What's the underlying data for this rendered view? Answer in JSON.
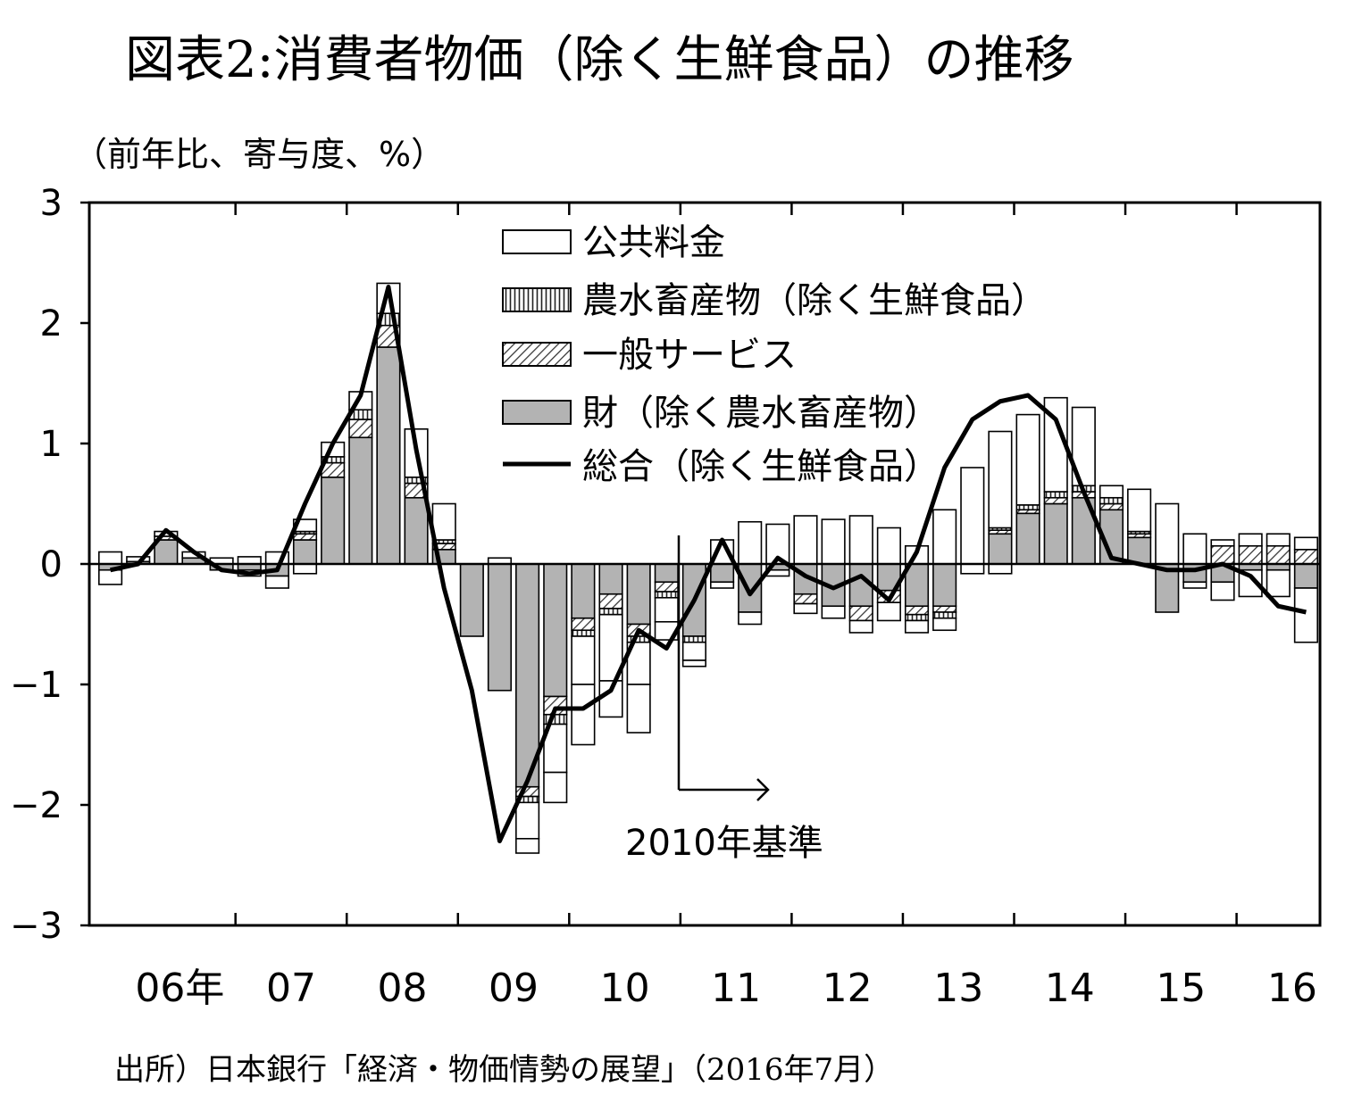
{
  "title": "図表2:消費者物価（除く生鮮食品）の推移",
  "source": "出所）日本銀行「経済・物価情勢の展望」（2016年7月）",
  "chart_data": {
    "type": "bar",
    "stacked": true,
    "ylabel": "（前年比、寄与度、%）",
    "ylim": [
      -3,
      3
    ],
    "yticks": [
      "3",
      "2",
      "1",
      "0",
      "−1",
      "−2",
      "−3"
    ],
    "ytick_values": [
      3,
      2,
      1,
      0,
      -1,
      -2,
      -3
    ],
    "xtick_labels": [
      "06年",
      "07",
      "08",
      "09",
      "10",
      "11",
      "12",
      "13",
      "14",
      "15",
      "16"
    ],
    "quarters_start": "2005Q4",
    "annotation": "2010年基準",
    "series": [
      {
        "name": "財（除く農水畜産物）",
        "pattern": "gray",
        "values": [
          -0.05,
          0.02,
          0.2,
          0.05,
          -0.05,
          -0.05,
          -0.1,
          0.2,
          0.72,
          1.05,
          1.8,
          0.55,
          0.12,
          -0.6,
          -1.05,
          -1.85,
          -1.1,
          -0.45,
          -0.25,
          -0.5,
          -0.15,
          -0.6,
          -0.15,
          -0.4,
          -0.05,
          -0.25,
          -0.35,
          -0.35,
          -0.22,
          -0.35,
          -0.35,
          0.0,
          0.25,
          0.42,
          0.5,
          0.55,
          0.45,
          0.22,
          -0.4,
          -0.15,
          -0.15,
          -0.05,
          -0.05,
          -0.2
        ]
      },
      {
        "name": "一般サービス",
        "pattern": "hatch",
        "values": [
          0.0,
          0.0,
          0.03,
          0.0,
          0.0,
          0.0,
          0.0,
          0.05,
          0.12,
          0.15,
          0.18,
          0.12,
          0.05,
          0.0,
          0.0,
          -0.08,
          -0.15,
          -0.1,
          -0.12,
          -0.1,
          -0.08,
          0.0,
          0.0,
          0.0,
          0.0,
          -0.08,
          0.0,
          -0.12,
          -0.1,
          -0.07,
          -0.05,
          0.0,
          0.03,
          0.03,
          0.05,
          0.05,
          0.05,
          0.03,
          0.0,
          0.0,
          0.15,
          0.15,
          0.15,
          0.12
        ]
      },
      {
        "name": "農水畜産物（除く生鮮食品）",
        "pattern": "vertical",
        "values": [
          0.0,
          0.0,
          0.0,
          0.0,
          0.0,
          0.0,
          0.0,
          0.02,
          0.05,
          0.08,
          0.1,
          0.05,
          0.03,
          0.0,
          0.0,
          -0.05,
          -0.08,
          -0.05,
          -0.05,
          -0.05,
          -0.05,
          -0.05,
          0.0,
          0.0,
          0.0,
          0.0,
          0.0,
          0.0,
          0.0,
          -0.05,
          -0.05,
          0.0,
          0.02,
          0.04,
          0.05,
          0.05,
          0.05,
          0.02,
          0.0,
          0.0,
          0.0,
          0.0,
          0.0,
          0.0
        ]
      },
      {
        "name": "公共料金",
        "pattern": "white",
        "values": [
          0.1,
          0.04,
          0.04,
          0.05,
          0.05,
          0.06,
          0.1,
          0.1,
          0.12,
          0.15,
          0.25,
          0.4,
          0.3,
          0.0,
          0.05,
          -0.3,
          -0.4,
          -0.4,
          -0.55,
          -0.35,
          -0.2,
          -0.15,
          0.2,
          0.35,
          0.33,
          0.4,
          0.37,
          0.4,
          0.3,
          0.15,
          0.45,
          0.8,
          0.8,
          0.75,
          0.78,
          0.65,
          0.1,
          0.35,
          0.5,
          0.25,
          0.05,
          0.1,
          0.1,
          0.1
        ]
      }
    ],
    "negative_extra_whites": [
      -0.12,
      0,
      0,
      0,
      0,
      -0.05,
      -0.1,
      -0.08,
      0,
      0,
      0,
      0,
      0,
      0,
      0,
      -0.12,
      -0.25,
      -0.5,
      -0.3,
      -0.4,
      -0.15,
      -0.05,
      -0.05,
      -0.1,
      -0.05,
      -0.08,
      -0.1,
      -0.1,
      -0.15,
      -0.1,
      -0.1,
      -0.08,
      -0.08,
      0,
      0,
      0,
      0,
      0,
      0,
      -0.05,
      -0.15,
      -0.22,
      -0.22,
      -0.45
    ],
    "line": {
      "name": "総合（除く生鮮食品）",
      "values": [
        -0.05,
        0.0,
        0.28,
        0.1,
        -0.05,
        -0.08,
        -0.05,
        0.5,
        1.0,
        1.4,
        2.3,
        0.95,
        -0.2,
        -1.05,
        -2.3,
        -1.8,
        -1.2,
        -1.2,
        -1.05,
        -0.55,
        -0.7,
        -0.3,
        0.2,
        -0.25,
        0.05,
        -0.1,
        -0.2,
        -0.1,
        -0.3,
        0.1,
        0.8,
        1.2,
        1.35,
        1.4,
        1.2,
        0.6,
        0.05,
        0.0,
        -0.05,
        -0.05,
        0.0,
        -0.1,
        -0.35,
        -0.4
      ]
    },
    "legend": [
      "公共料金",
      "農水畜産物（除く生鮮食品）",
      "一般サービス",
      "財（除く農水畜産物）",
      "総合（除く生鮮食品）"
    ]
  }
}
